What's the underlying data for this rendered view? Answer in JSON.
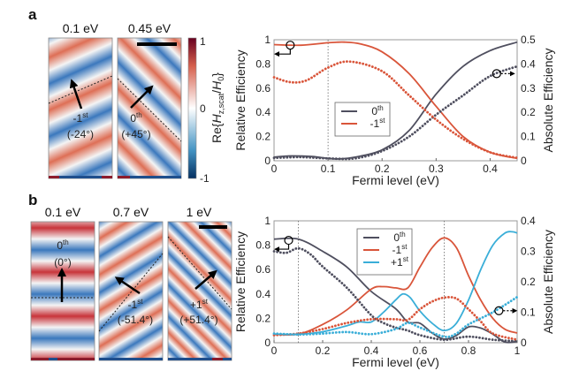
{
  "panel_a": {
    "label": "a",
    "maps": [
      {
        "title": "0.1 eV",
        "order": "-1",
        "sup": "st",
        "angle": "(-24°)"
      },
      {
        "title": "0.45 eV",
        "order": "0",
        "sup": "th",
        "angle": "(+45°)"
      }
    ],
    "colorbar": {
      "ticks": [
        "1",
        "0",
        "-1"
      ],
      "label": {
        "pre": "Re{",
        "h": "H",
        "sub": "z,scat",
        "slash": "/",
        "h0": "H",
        "sub0": "0",
        "post": "}"
      },
      "colors": [
        "#67001f",
        "#d6604d",
        "#ffffff",
        "#4393c3",
        "#053061"
      ]
    }
  },
  "panel_b": {
    "label": "b",
    "maps": [
      {
        "title": "0.1 eV",
        "order": "0",
        "sup": "th",
        "angle": "(0°)"
      },
      {
        "title": "0.7 eV",
        "order": "-1",
        "sup": "st",
        "angle": "(-51.4°)"
      },
      {
        "title": "1 eV",
        "order": "+1",
        "sup": "st",
        "angle": "(+51.4°)"
      }
    ]
  },
  "chart_data": [
    {
      "type": "line",
      "xlabel": "Fermi level (eV)",
      "ylabel": "Relative Efficiency",
      "y2label": "Absolute Efficiency",
      "xlim": [
        0,
        0.45
      ],
      "ylim": [
        0,
        1
      ],
      "y2lim": [
        0,
        0.5
      ],
      "xticks": [
        "0",
        "0.1",
        "0.2",
        "0.3",
        "0.4"
      ],
      "xtickvals": [
        0,
        0.1,
        0.2,
        0.3,
        0.4
      ],
      "yticks": [
        "0",
        "0.2",
        "0.4",
        "0.6",
        "0.8",
        "1"
      ],
      "y2ticks": [
        "0",
        "0.1",
        "0.2",
        "0.3",
        "0.4",
        "0.5"
      ],
      "vlines": [
        0.1
      ],
      "legend": [
        {
          "base": "0",
          "sup": "th",
          "color": "#4f4f5f"
        },
        {
          "base": "-1",
          "sup": "st",
          "color": "#d9553a"
        }
      ],
      "series": [
        {
          "order": "0th",
          "axis": "left",
          "style": "solid",
          "color": "#4f4f5f",
          "x": [
            0,
            0.03,
            0.07,
            0.1,
            0.12,
            0.15,
            0.2,
            0.25,
            0.3,
            0.35,
            0.4,
            0.45
          ],
          "y": [
            0.03,
            0.04,
            0.035,
            0.02,
            0.015,
            0.03,
            0.09,
            0.25,
            0.55,
            0.78,
            0.91,
            0.98
          ]
        },
        {
          "order": "-1st",
          "axis": "left",
          "style": "solid",
          "color": "#d9553a",
          "x": [
            0,
            0.05,
            0.1,
            0.13,
            0.16,
            0.2,
            0.25,
            0.3,
            0.35,
            0.4,
            0.45
          ],
          "y": [
            0.96,
            0.955,
            0.975,
            0.98,
            0.965,
            0.9,
            0.72,
            0.45,
            0.2,
            0.07,
            0.02
          ]
        },
        {
          "order": "0th",
          "axis": "right",
          "style": "dotted",
          "color": "#4f4f5f",
          "x": [
            0,
            0.05,
            0.1,
            0.15,
            0.2,
            0.25,
            0.3,
            0.35,
            0.4,
            0.45
          ],
          "y": [
            0.012,
            0.015,
            0.01,
            0.01,
            0.04,
            0.1,
            0.19,
            0.27,
            0.35,
            0.39
          ]
        },
        {
          "order": "-1st",
          "axis": "right",
          "style": "dotted",
          "color": "#d9553a",
          "x": [
            0,
            0.03,
            0.06,
            0.1,
            0.14,
            0.2,
            0.25,
            0.3,
            0.35,
            0.4,
            0.45
          ],
          "y": [
            0.345,
            0.325,
            0.332,
            0.385,
            0.41,
            0.37,
            0.27,
            0.17,
            0.09,
            0.035,
            0.012
          ]
        }
      ]
    },
    {
      "type": "line",
      "xlabel": "Fermi level (eV)",
      "ylabel": "Relative Efficiency",
      "y2label": "Absolute Efficiency",
      "xlim": [
        0,
        1
      ],
      "ylim": [
        0,
        1
      ],
      "y2lim": [
        0,
        0.4
      ],
      "xticks": [
        "0",
        "0.2",
        "0.4",
        "0.6",
        "0.8",
        "1"
      ],
      "xtickvals": [
        0,
        0.2,
        0.4,
        0.6,
        0.8,
        1
      ],
      "yticks": [
        "0",
        "0.2",
        "0.4",
        "0.6",
        "0.8",
        "1"
      ],
      "y2ticks": [
        "0",
        "0.1",
        "0.2",
        "0.3",
        "0.4"
      ],
      "vlines": [
        0.1,
        0.7
      ],
      "legend": [
        {
          "base": "0",
          "sup": "th",
          "color": "#4f4f5f"
        },
        {
          "base": "-1",
          "sup": "st",
          "color": "#d9553a"
        },
        {
          "base": "+1",
          "sup": "st",
          "color": "#3aaed8"
        }
      ],
      "series": [
        {
          "order": "0th",
          "axis": "left",
          "style": "solid",
          "color": "#4f4f5f",
          "x": [
            0,
            0.1,
            0.2,
            0.3,
            0.4,
            0.5,
            0.55,
            0.6,
            0.65,
            0.7,
            0.75,
            0.8,
            0.85,
            0.9,
            0.95,
            1
          ],
          "y": [
            0.85,
            0.85,
            0.75,
            0.62,
            0.42,
            0.28,
            0.17,
            0.16,
            0.08,
            0.03,
            0.06,
            0.13,
            0.12,
            0.07,
            0.005,
            0.01
          ]
        },
        {
          "order": "-1st",
          "axis": "left",
          "style": "solid",
          "color": "#d9553a",
          "x": [
            0,
            0.1,
            0.2,
            0.3,
            0.4,
            0.45,
            0.5,
            0.55,
            0.6,
            0.65,
            0.7,
            0.75,
            0.8,
            0.85,
            0.9,
            0.95,
            1
          ],
          "y": [
            0.07,
            0.07,
            0.15,
            0.27,
            0.44,
            0.46,
            0.45,
            0.45,
            0.62,
            0.78,
            0.86,
            0.78,
            0.55,
            0.35,
            0.2,
            0.11,
            0.08
          ]
        },
        {
          "order": "+1st",
          "axis": "left",
          "style": "solid",
          "color": "#3aaed8",
          "x": [
            0,
            0.1,
            0.2,
            0.3,
            0.35,
            0.4,
            0.45,
            0.5,
            0.53,
            0.56,
            0.6,
            0.65,
            0.7,
            0.75,
            0.8,
            0.85,
            0.9,
            0.95,
            0.98,
            1
          ],
          "y": [
            0.07,
            0.07,
            0.09,
            0.14,
            0.17,
            0.17,
            0.25,
            0.35,
            0.4,
            0.37,
            0.26,
            0.16,
            0.1,
            0.16,
            0.35,
            0.6,
            0.8,
            0.9,
            0.91,
            0.9
          ]
        },
        {
          "order": "0th",
          "axis": "right",
          "style": "dotted",
          "color": "#4f4f5f",
          "x": [
            0,
            0.05,
            0.1,
            0.15,
            0.2,
            0.3,
            0.4,
            0.45,
            0.5,
            0.55,
            0.6,
            0.7,
            0.8,
            0.9,
            1
          ],
          "y": [
            0.3,
            0.295,
            0.31,
            0.29,
            0.25,
            0.18,
            0.09,
            0.065,
            0.05,
            0.04,
            0.025,
            0.01,
            0.02,
            0.01,
            0.005
          ]
        },
        {
          "order": "-1st",
          "axis": "right",
          "style": "dotted",
          "color": "#d9553a",
          "x": [
            0,
            0.1,
            0.2,
            0.3,
            0.4,
            0.5,
            0.55,
            0.6,
            0.65,
            0.7,
            0.75,
            0.8,
            0.85,
            0.9,
            1
          ],
          "y": [
            0.025,
            0.03,
            0.045,
            0.065,
            0.077,
            0.077,
            0.075,
            0.11,
            0.135,
            0.148,
            0.145,
            0.11,
            0.07,
            0.03,
            0.01
          ]
        },
        {
          "order": "+1st",
          "axis": "right",
          "style": "dotted",
          "color": "#3aaed8",
          "x": [
            0,
            0.1,
            0.2,
            0.3,
            0.4,
            0.5,
            0.55,
            0.6,
            0.7,
            0.75,
            0.8,
            0.9,
            1
          ],
          "y": [
            0.03,
            0.027,
            0.03,
            0.035,
            0.028,
            0.045,
            0.065,
            0.05,
            0.02,
            0.03,
            0.06,
            0.1,
            0.15
          ]
        }
      ]
    }
  ]
}
